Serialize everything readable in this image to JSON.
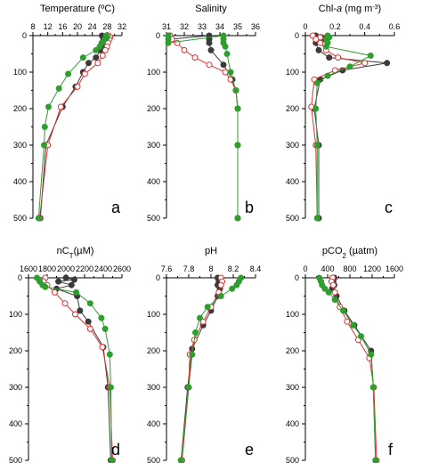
{
  "colors": {
    "s1": "#3a3a3a",
    "s2": "#e03030",
    "s3": "#2e9e2e"
  },
  "chart_data": [
    {
      "type": "line",
      "panel_label": "a",
      "title": "Temperature (ºC)",
      "xlim": [
        8,
        32
      ],
      "xticks": [
        8,
        12,
        16,
        20,
        24,
        28,
        32
      ],
      "ylim": [
        0,
        500
      ],
      "yticks": [
        0,
        100,
        200,
        300,
        400,
        500
      ],
      "series": [
        {
          "color_key": "s1",
          "marker": "filled",
          "points": [
            [
              26.6,
              0
            ],
            [
              27.0,
              5
            ],
            [
              27.0,
              10
            ],
            [
              26.6,
              20
            ],
            [
              26.6,
              30
            ],
            [
              26.2,
              40
            ],
            [
              25.0,
              60
            ],
            [
              23.0,
              75
            ],
            [
              21.5,
              100
            ],
            [
              19.5,
              140
            ],
            [
              16.0,
              195
            ],
            [
              11.5,
              300
            ],
            [
              10.0,
              500
            ]
          ]
        },
        {
          "color_key": "s2",
          "marker": "open",
          "points": [
            [
              28.4,
              0
            ],
            [
              28.8,
              5
            ],
            [
              28.6,
              10
            ],
            [
              28.2,
              20
            ],
            [
              28.0,
              30
            ],
            [
              27.5,
              40
            ],
            [
              26.8,
              55
            ],
            [
              25.5,
              75
            ],
            [
              22.0,
              105
            ],
            [
              20.0,
              140
            ],
            [
              15.5,
              195
            ],
            [
              12.0,
              300
            ],
            [
              9.8,
              500
            ]
          ]
        },
        {
          "color_key": "s3",
          "marker": "filled",
          "points": [
            [
              27.8,
              0
            ],
            [
              28.0,
              5
            ],
            [
              27.4,
              10
            ],
            [
              26.5,
              20
            ],
            [
              26.0,
              30
            ],
            [
              25.0,
              40
            ],
            [
              21.5,
              60
            ],
            [
              17.5,
              105
            ],
            [
              15.0,
              145
            ],
            [
              12.2,
              195
            ],
            [
              11.2,
              250
            ],
            [
              11.0,
              300
            ],
            [
              9.5,
              500
            ]
          ]
        }
      ]
    },
    {
      "type": "line",
      "panel_label": "b",
      "title": "Salinity",
      "xlim": [
        31,
        36
      ],
      "xticks": [
        31,
        32,
        33,
        34,
        35,
        36
      ],
      "ylim": [
        0,
        500
      ],
      "yticks": [
        0,
        100,
        200,
        300,
        400,
        500
      ],
      "series": [
        {
          "color_key": "s1",
          "marker": "filled",
          "points": [
            [
              31.2,
              0
            ],
            [
              31.2,
              10
            ],
            [
              33.4,
              0
            ],
            [
              33.4,
              10
            ],
            [
              33.4,
              20
            ],
            [
              33.5,
              40
            ],
            [
              34.2,
              80
            ],
            [
              34.7,
              120
            ],
            [
              34.9,
              150
            ],
            [
              35.0,
              200
            ],
            [
              35.0,
              300
            ],
            [
              35.0,
              500
            ]
          ]
        },
        {
          "color_key": "s2",
          "marker": "open",
          "points": [
            [
              31.2,
              0
            ],
            [
              31.3,
              10
            ],
            [
              31.6,
              20
            ],
            [
              32.0,
              40
            ],
            [
              32.6,
              60
            ],
            [
              33.4,
              80
            ],
            [
              34.3,
              100
            ],
            [
              34.6,
              120
            ],
            [
              34.9,
              150
            ],
            [
              35.0,
              200
            ],
            [
              35.0,
              300
            ],
            [
              35.0,
              500
            ]
          ]
        },
        {
          "color_key": "s3",
          "marker": "filled",
          "points": [
            [
              31.1,
              0
            ],
            [
              31.1,
              10
            ],
            [
              31.1,
              20
            ],
            [
              34.2,
              0
            ],
            [
              34.2,
              10
            ],
            [
              34.2,
              20
            ],
            [
              34.3,
              30
            ],
            [
              34.4,
              50
            ],
            [
              34.6,
              100
            ],
            [
              34.9,
              150
            ],
            [
              35.0,
              200
            ],
            [
              35.0,
              300
            ],
            [
              35.0,
              500
            ]
          ]
        }
      ]
    },
    {
      "type": "line",
      "panel_label": "c",
      "title_main": "Chl-",
      "title_italic": "a",
      "title_unit": " (mg m",
      "title_exp": "-3",
      "title_close": ")",
      "xlim": [
        0,
        0.6
      ],
      "xticks": [
        0,
        0.2,
        0.4,
        0.6
      ],
      "ylim": [
        0,
        500
      ],
      "yticks": [
        0,
        100,
        200,
        300,
        400,
        500
      ],
      "series": [
        {
          "color_key": "s1",
          "marker": "filled",
          "points": [
            [
              0.07,
              0
            ],
            [
              0.11,
              5
            ],
            [
              0.13,
              10
            ],
            [
              0.07,
              20
            ],
            [
              0.09,
              40
            ],
            [
              0.16,
              60
            ],
            [
              0.55,
              75
            ],
            [
              0.25,
              95
            ],
            [
              0.1,
              120
            ],
            [
              0.06,
              200
            ],
            [
              0.09,
              300
            ],
            [
              0.09,
              500
            ]
          ]
        },
        {
          "color_key": "s2",
          "marker": "open",
          "points": [
            [
              0.05,
              0
            ],
            [
              0.1,
              5
            ],
            [
              0.07,
              10
            ],
            [
              0.1,
              20
            ],
            [
              0.14,
              40
            ],
            [
              0.22,
              60
            ],
            [
              0.4,
              75
            ],
            [
              0.2,
              95
            ],
            [
              0.06,
              120
            ],
            [
              0.04,
              195
            ],
            [
              0.07,
              300
            ],
            [
              0.08,
              500
            ]
          ]
        },
        {
          "color_key": "s3",
          "marker": "filled",
          "points": [
            [
              0.15,
              0
            ],
            [
              0.16,
              5
            ],
            [
              0.14,
              10
            ],
            [
              0.15,
              20
            ],
            [
              0.14,
              30
            ],
            [
              0.44,
              55
            ],
            [
              0.3,
              85
            ],
            [
              0.15,
              110
            ],
            [
              0.08,
              130
            ],
            [
              0.07,
              200
            ],
            [
              0.08,
              300
            ],
            [
              0.08,
              500
            ]
          ]
        }
      ]
    },
    {
      "type": "line",
      "panel_label": "d",
      "title_main": "nC",
      "title_sub": "T",
      "title_rest": "(µM)",
      "xlim": [
        1600,
        2600
      ],
      "xticks": [
        1600,
        1800,
        2000,
        2200,
        2400,
        2600
      ],
      "ylim": [
        0,
        500
      ],
      "yticks": [
        0,
        100,
        200,
        300,
        400,
        500
      ],
      "series": [
        {
          "color_key": "s1",
          "marker": "filled",
          "points": [
            [
              2000,
              0
            ],
            [
              2090,
              5
            ],
            [
              1920,
              10
            ],
            [
              2060,
              20
            ],
            [
              1900,
              30
            ],
            [
              2120,
              50
            ],
            [
              2150,
              90
            ],
            [
              2240,
              120
            ],
            [
              2400,
              190
            ],
            [
              2450,
              300
            ],
            [
              2480,
              500
            ]
          ]
        },
        {
          "color_key": "s2",
          "marker": "open",
          "points": [
            [
              1780,
              0
            ],
            [
              1760,
              10
            ],
            [
              1800,
              20
            ],
            [
              1880,
              40
            ],
            [
              1990,
              70
            ],
            [
              2100,
              100
            ],
            [
              2260,
              140
            ],
            [
              2390,
              190
            ],
            [
              2470,
              300
            ],
            [
              2500,
              500
            ]
          ]
        },
        {
          "color_key": "s3",
          "marker": "filled",
          "points": [
            [
              1690,
              0
            ],
            [
              1720,
              10
            ],
            [
              1750,
              20
            ],
            [
              1780,
              25
            ],
            [
              2110,
              40
            ],
            [
              2260,
              70
            ],
            [
              2380,
              110
            ],
            [
              2420,
              140
            ],
            [
              2470,
              210
            ],
            [
              2480,
              300
            ],
            [
              2490,
              500
            ]
          ]
        }
      ]
    },
    {
      "type": "line",
      "panel_label": "e",
      "title": "pH",
      "xlim": [
        7.6,
        8.4
      ],
      "xticks": [
        7.6,
        7.8,
        8,
        8.2,
        8.4
      ],
      "ylim": [
        0,
        500
      ],
      "yticks": [
        0,
        100,
        200,
        300,
        400,
        500
      ],
      "series": [
        {
          "color_key": "s1",
          "marker": "filled",
          "points": [
            [
              8.06,
              0
            ],
            [
              8.07,
              10
            ],
            [
              8.06,
              20
            ],
            [
              8.08,
              30
            ],
            [
              8.06,
              50
            ],
            [
              8.0,
              90
            ],
            [
              7.93,
              130
            ],
            [
              7.83,
              195
            ],
            [
              7.79,
              300
            ],
            [
              7.73,
              500
            ]
          ]
        },
        {
          "color_key": "s2",
          "marker": "open",
          "points": [
            [
              8.09,
              0
            ],
            [
              8.1,
              10
            ],
            [
              8.09,
              20
            ],
            [
              8.07,
              40
            ],
            [
              8.0,
              80
            ],
            [
              7.93,
              120
            ],
            [
              7.85,
              170
            ],
            [
              7.81,
              210
            ],
            [
              7.8,
              300
            ],
            [
              7.74,
              500
            ]
          ]
        },
        {
          "color_key": "s3",
          "marker": "filled",
          "points": [
            [
              8.27,
              0
            ],
            [
              8.25,
              10
            ],
            [
              8.23,
              20
            ],
            [
              8.19,
              30
            ],
            [
              8.09,
              50
            ],
            [
              7.97,
              80
            ],
            [
              7.9,
              110
            ],
            [
              7.86,
              150
            ],
            [
              7.83,
              210
            ],
            [
              7.8,
              300
            ],
            [
              7.73,
              500
            ]
          ]
        }
      ]
    },
    {
      "type": "line",
      "panel_label": "f",
      "title_main": "pCO",
      "title_sub": "2",
      "title_rest": " (µatm)",
      "xlim": [
        0,
        1600
      ],
      "xticks": [
        0,
        400,
        800,
        1200,
        1600
      ],
      "ylim": [
        0,
        500
      ],
      "yticks": [
        0,
        100,
        200,
        300,
        400,
        500
      ],
      "series": [
        {
          "color_key": "s1",
          "marker": "filled",
          "points": [
            [
              520,
              0
            ],
            [
              500,
              10
            ],
            [
              520,
              20
            ],
            [
              480,
              30
            ],
            [
              560,
              50
            ],
            [
              700,
              90
            ],
            [
              880,
              130
            ],
            [
              1180,
              200
            ],
            [
              1220,
              300
            ],
            [
              1260,
              500
            ]
          ]
        },
        {
          "color_key": "s2",
          "marker": "open",
          "points": [
            [
              490,
              0
            ],
            [
              470,
              10
            ],
            [
              500,
              20
            ],
            [
              530,
              40
            ],
            [
              620,
              80
            ],
            [
              750,
              120
            ],
            [
              950,
              170
            ],
            [
              1150,
              220
            ],
            [
              1230,
              300
            ],
            [
              1280,
              500
            ]
          ]
        },
        {
          "color_key": "s3",
          "marker": "filled",
          "points": [
            [
              250,
              0
            ],
            [
              280,
              10
            ],
            [
              300,
              20
            ],
            [
              350,
              30
            ],
            [
              420,
              40
            ],
            [
              530,
              60
            ],
            [
              680,
              90
            ],
            [
              860,
              130
            ],
            [
              1000,
              160
            ],
            [
              1180,
              210
            ],
            [
              1220,
              300
            ],
            [
              1260,
              500
            ]
          ]
        }
      ]
    }
  ]
}
